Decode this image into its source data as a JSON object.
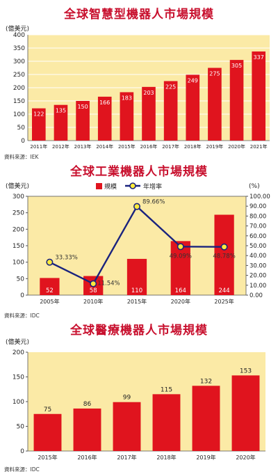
{
  "chart_data": [
    {
      "type": "bar",
      "title": "全球智慧型機器人市場規模",
      "ylabel": "(億美元)",
      "ylim": [
        0,
        400
      ],
      "yticks": [
        0,
        50,
        100,
        150,
        200,
        250,
        300,
        350,
        400
      ],
      "categories": [
        "2011年",
        "2012年",
        "2013年",
        "2014年",
        "2015年",
        "2016年",
        "2017年",
        "2018年",
        "2019年",
        "2020年",
        "2021年"
      ],
      "values": [
        122,
        135,
        150,
        166,
        183,
        203,
        225,
        249,
        275,
        305,
        337
      ],
      "grid": true,
      "source": "資料來源：IEK",
      "colors": {
        "bar": "#e0141e",
        "plot_bg": "#fbeaa6",
        "grid": "#ffffff",
        "title": "#c8102e"
      }
    },
    {
      "type": "bar",
      "title": "全球工業機器人市場規模",
      "ylabel": "(億美元)",
      "ylabel_right": "(%)",
      "ylim": [
        0,
        300
      ],
      "ylim_right": [
        0,
        100
      ],
      "yticks": [
        0,
        50,
        100,
        150,
        200,
        250,
        300
      ],
      "yticks_right": [
        "0.00",
        "10.00",
        "20.00",
        "30.00",
        "40.00",
        "50.00",
        "60.00",
        "70.00",
        "80.00",
        "90.00",
        "100.00"
      ],
      "categories": [
        "2005年",
        "2010年",
        "2015年",
        "2020年",
        "2025年"
      ],
      "legend": {
        "bar_label": "規模",
        "line_label": "年增率",
        "position": "top-center"
      },
      "series": [
        {
          "name": "規模",
          "type": "bar",
          "values": [
            52,
            58,
            110,
            164,
            244
          ],
          "value_labels": [
            "52",
            "58",
            "110",
            "164",
            "244"
          ]
        },
        {
          "name": "年增率",
          "type": "line",
          "values": [
            33.33,
            11.54,
            89.66,
            49.09,
            48.78
          ],
          "value_labels": [
            "33.33%",
            "11.54%",
            "89.66%",
            "49.09%",
            "48.78%"
          ]
        }
      ],
      "grid": false,
      "source": "資料來源：IDC",
      "colors": {
        "bar": "#e0141e",
        "line": "#1a237e",
        "marker_fill": "#ffeb3b",
        "plot_bg": "#fbeaa6",
        "title": "#c8102e"
      }
    },
    {
      "type": "bar",
      "title": "全球醫療機器人市場規模",
      "ylabel": "(億美元)",
      "ylim": [
        0,
        200
      ],
      "yticks": [
        0,
        50,
        100,
        150,
        200
      ],
      "categories": [
        "2015年",
        "2016年",
        "2017年",
        "2018年",
        "2019年",
        "2020年"
      ],
      "values": [
        75,
        86,
        99,
        115,
        132,
        153
      ],
      "grid": false,
      "source": "資料來源：IDC",
      "colors": {
        "bar": "#e0141e",
        "plot_bg": "#fbeaa6",
        "title": "#c8102e"
      }
    }
  ]
}
